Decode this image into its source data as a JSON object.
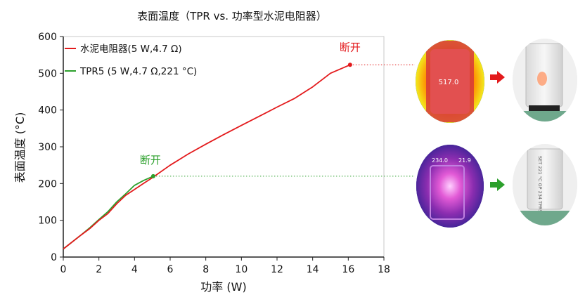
{
  "chart_data": {
    "type": "line",
    "title": "表面温度（TPR vs. 功率型水泥电阻器）",
    "xlabel": "功率 (W)",
    "ylabel": "表面温度 (°C)",
    "xlim": [
      0,
      18
    ],
    "ylim": [
      0,
      600
    ],
    "xticks": [
      0,
      2,
      4,
      6,
      8,
      10,
      12,
      14,
      16,
      18
    ],
    "yticks": [
      0,
      100,
      200,
      300,
      400,
      500,
      600
    ],
    "legend_position": "top-left",
    "grid": false,
    "series": [
      {
        "name": "水泥电阻器(5 W,4.7 Ω)",
        "color": "#e31a1c",
        "points": [
          [
            0,
            22
          ],
          [
            1,
            60
          ],
          [
            1.5,
            78
          ],
          [
            2,
            100
          ],
          [
            2.5,
            118
          ],
          [
            3,
            145
          ],
          [
            3.5,
            168
          ],
          [
            4,
            184
          ],
          [
            4.5,
            200
          ],
          [
            5,
            216
          ],
          [
            6,
            250
          ],
          [
            7,
            280
          ],
          [
            8,
            307
          ],
          [
            9,
            333
          ],
          [
            10,
            358
          ],
          [
            11,
            383
          ],
          [
            12,
            408
          ],
          [
            13,
            432
          ],
          [
            14,
            463
          ],
          [
            15,
            500
          ],
          [
            16.1,
            523
          ]
        ],
        "endpoint": [
          16.1,
          523
        ],
        "annotation": "断开"
      },
      {
        "name": "TPR5 (5 W,4.7 Ω,221 °C)",
        "color": "#2ca02c",
        "points": [
          [
            0,
            22
          ],
          [
            1,
            60
          ],
          [
            1.5,
            80
          ],
          [
            2,
            102
          ],
          [
            2.5,
            123
          ],
          [
            3,
            150
          ],
          [
            3.5,
            172
          ],
          [
            4,
            195
          ],
          [
            4.5,
            208
          ],
          [
            5.05,
            220
          ]
        ],
        "endpoint": [
          5.05,
          220
        ],
        "annotation": "断开"
      }
    ]
  },
  "photos": [
    {
      "thermal_label": "517.0",
      "arrow_color": "#e31a1c"
    },
    {
      "thermal_label_left": "234.0",
      "thermal_label_right": "21.9",
      "device_text": "SET 221 °C GP 234 TPR5-14R70LB",
      "arrow_color": "#2ca02c"
    }
  ]
}
